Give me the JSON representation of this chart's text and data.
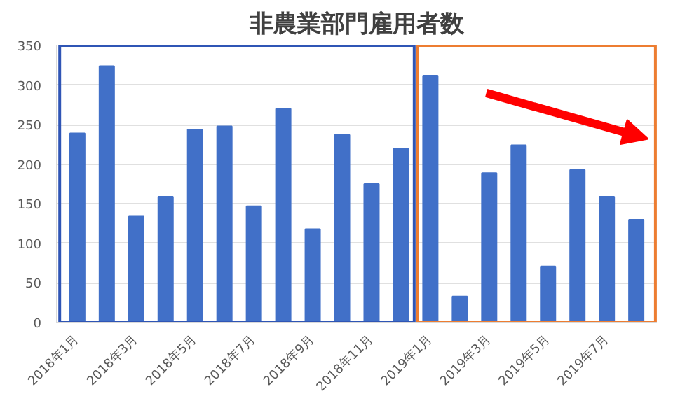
{
  "chart_data": {
    "type": "bar",
    "title": "非農業部門雇用者数",
    "categories": [
      "2018年1月",
      null,
      "2018年3月",
      null,
      "2018年5月",
      null,
      "2018年7月",
      null,
      "2018年9月",
      null,
      "2018年11月",
      null,
      "2019年1月",
      null,
      "2019年3月",
      null,
      "2019年5月",
      null,
      "2019年7月",
      null
    ],
    "values": [
      239,
      324,
      134,
      159,
      244,
      248,
      147,
      270,
      118,
      237,
      175,
      220,
      312,
      33,
      189,
      224,
      71,
      193,
      159,
      130
    ],
    "color": "#4170c8",
    "ylim": [
      0,
      350
    ],
    "yticks": [
      0,
      50,
      100,
      150,
      200,
      250,
      300,
      350
    ],
    "grid": "y"
  }
}
